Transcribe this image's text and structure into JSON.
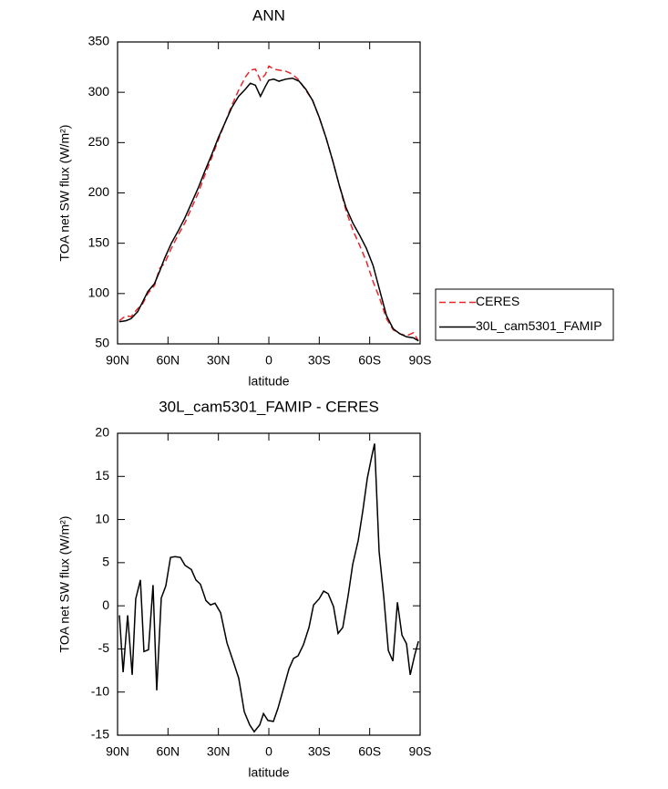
{
  "chart_data": [
    {
      "type": "line",
      "title": "ANN",
      "x_label": "latitude",
      "y_label": "TOA net SW flux (W/m²)",
      "x": [
        89,
        85,
        82,
        78,
        75,
        72,
        68,
        65,
        62,
        58,
        54,
        50,
        46,
        42,
        38,
        34,
        30,
        26,
        22,
        18,
        14,
        11,
        8,
        5,
        2,
        0,
        -3,
        -6,
        -10,
        -14,
        -18,
        -22,
        -26,
        -30,
        -34,
        -38,
        -42,
        -46,
        -50,
        -54,
        -58,
        -62,
        -66,
        -70,
        -74,
        -78,
        -82,
        -86,
        -89
      ],
      "series": [
        {
          "name": "CERES",
          "color": "#e8262a",
          "line_style": "dashed",
          "values": [
            73,
            78,
            77,
            85,
            90,
            100,
            108,
            125,
            130,
            145,
            158,
            170,
            185,
            200,
            218,
            235,
            253,
            270,
            287,
            302,
            315,
            322,
            323,
            312,
            318,
            326,
            323,
            322,
            321,
            318,
            312,
            302,
            292,
            275,
            255,
            232,
            207,
            182,
            163,
            148,
            132,
            112,
            95,
            75,
            64,
            60,
            58,
            61,
            53
          ]
        },
        {
          "name": "30L_cam5301_FAMIP",
          "color": "#000000",
          "line_style": "solid",
          "values": [
            72,
            73,
            75,
            82,
            92,
            102,
            110,
            122,
            135,
            150,
            162,
            175,
            190,
            205,
            222,
            238,
            255,
            270,
            285,
            296,
            303,
            309,
            307,
            296,
            306,
            312,
            313,
            311,
            313,
            314,
            311,
            303,
            292,
            275,
            255,
            232,
            207,
            185,
            170,
            158,
            145,
            128,
            103,
            78,
            65,
            60,
            57,
            56,
            53
          ]
        }
      ],
      "xlim": [
        90,
        -90
      ],
      "xticks": [
        {
          "value": 90,
          "label": "90N"
        },
        {
          "value": 60,
          "label": "60N"
        },
        {
          "value": 30,
          "label": "30N"
        },
        0,
        {
          "value": -30,
          "label": "30S"
        },
        {
          "value": -60,
          "label": "60S"
        },
        {
          "value": -90,
          "label": "90S"
        }
      ],
      "ylim": [
        50,
        350
      ],
      "yticks": [
        50,
        100,
        150,
        200,
        250,
        300,
        350
      ],
      "legend": "outside-right"
    },
    {
      "type": "line",
      "title": "30L_cam5301_FAMIP - CERES",
      "x_label": "latitude",
      "y_label": "TOA net SW flux (W/m²)",
      "x": [
        88.9,
        86.7,
        84,
        81.3,
        79.2,
        76.4,
        74.3,
        71.6,
        68.9,
        66.7,
        64,
        61.3,
        58.5,
        55.8,
        52.6,
        49.9,
        46.1,
        43.4,
        40.7,
        37.4,
        34.7,
        32,
        28.7,
        24.9,
        21.1,
        17.9,
        14.6,
        11.4,
        8.7,
        5.4,
        3.2,
        0.5,
        -2.7,
        -5.4,
        -8.7,
        -12,
        -14.7,
        -17.4,
        -20.6,
        -23.9,
        -26.6,
        -29.9,
        -32.6,
        -35.3,
        -38.5,
        -41.2,
        -44,
        -47.2,
        -49.9,
        -53.2,
        -55.9,
        -58.6,
        -61.3,
        -62.9,
        -65.6,
        -68.4,
        -71.1,
        -73.8,
        -76.5,
        -79.2,
        -81.9,
        -84.1,
        -86.8,
        -89
      ],
      "color": "#000000",
      "values": [
        -1.1,
        -7.7,
        -1.1,
        -8.0,
        0.8,
        3.0,
        -5.3,
        -5.1,
        2.4,
        -9.8,
        0.9,
        2.3,
        5.6,
        5.7,
        5.6,
        4.7,
        4.2,
        3.0,
        2.5,
        0.6,
        0.1,
        0.3,
        -0.8,
        -4.3,
        -6.5,
        -8.4,
        -12.3,
        -13.8,
        -14.6,
        -13.8,
        -12.5,
        -13.3,
        -13.4,
        -11.9,
        -9.6,
        -7.3,
        -6.1,
        -5.8,
        -4.5,
        -2.5,
        0.1,
        0.8,
        1.7,
        1.4,
        -0.1,
        -3.2,
        -2.5,
        1.2,
        4.8,
        7.6,
        11.0,
        14.8,
        17.4,
        18.8,
        6.3,
        1.0,
        -5.2,
        -6.4,
        0.4,
        -3.4,
        -4.4,
        -8.0,
        -5.7,
        -4.1
      ],
      "xlim": [
        90,
        -90
      ],
      "xticks": [
        {
          "value": 90,
          "label": "90N"
        },
        {
          "value": 60,
          "label": "60N"
        },
        {
          "value": 30,
          "label": "30N"
        },
        0,
        {
          "value": -30,
          "label": "30S"
        },
        {
          "value": -60,
          "label": "60S"
        },
        {
          "value": -90,
          "label": "90S"
        }
      ],
      "ylim": [
        -15,
        20
      ],
      "yticks": [
        -15,
        -10,
        -5,
        0,
        5,
        10,
        15,
        20
      ]
    }
  ]
}
